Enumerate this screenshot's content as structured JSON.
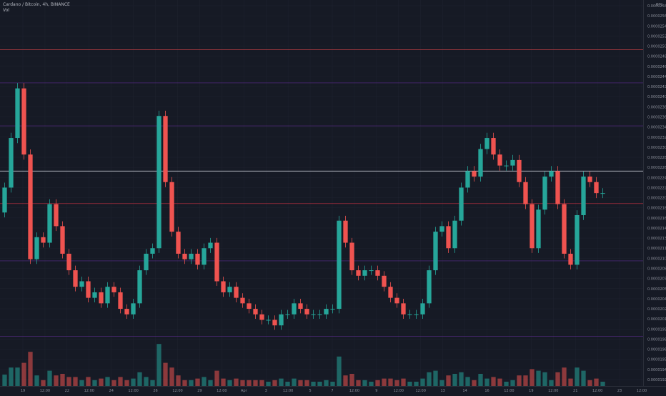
{
  "header": {
    "title": "Cardano / Bitcoin, 4h, BINANCE",
    "volume_label": "Vol"
  },
  "currency_label": "BTC",
  "colors": {
    "background": "#161a25",
    "up": "#26a69a",
    "down": "#ef5350",
    "grid": "#1f2330",
    "axis_text": "#8a8e99",
    "resistance": "#d9434a",
    "level_purple": "#5a2d8c",
    "price_line": "#c8ccd6",
    "current_line": "#cc3344"
  },
  "chart_data": {
    "type": "candlestick",
    "symbol": "ADA/BTC",
    "timeframe": "4h",
    "exchange": "BINANCE",
    "y_axis_ticks": [
      "0.00002580",
      "0.00002560",
      "0.00002540",
      "0.00002520",
      "0.00002500",
      "0.00002480",
      "0.00002460",
      "0.00002440",
      "0.00002420",
      "0.00002400",
      "0.00002380",
      "0.00002360",
      "0.00002340",
      "0.00002320",
      "0.00002300",
      "0.00002280",
      "0.00002260",
      "0.00002240",
      "0.00002220",
      "0.00002200",
      "0.00002180",
      "0.00002160",
      "0.00002145",
      "0.00002130",
      "0.00002115",
      "0.00002100",
      "0.00002085",
      "0.00002070",
      "0.00002055",
      "0.00002040",
      "0.00002025",
      "0.00002010",
      "0.00001996",
      "0.00001982",
      "0.00001968",
      "0.00001954",
      "0.00001940",
      "0.00001926"
    ],
    "x_axis_labels": [
      "19",
      "12:00",
      "22",
      "12:00",
      "24",
      "12:00",
      "26",
      "12:00",
      "29",
      "12:00",
      "Apr",
      "3",
      "12:00",
      "5",
      "7",
      "12:00",
      "9",
      "12:00",
      "12:00",
      "13",
      "14",
      "16",
      "12:00",
      "19",
      "12:00",
      "21",
      "12:00",
      "23",
      "12:00"
    ],
    "y_range": [
      1.9e-05,
      2.59e-05
    ],
    "horizontal_levels": [
      {
        "label": "0.00002510",
        "value": 2.51e-05,
        "style": "resistance"
      },
      {
        "label": "0.00002450",
        "value": 2.45e-05,
        "style": "purple"
      },
      {
        "label": "0.00002372",
        "value": 2.372e-05,
        "style": "purple"
      },
      {
        "label": "0.00002290",
        "value": 2.29e-05,
        "style": "price"
      },
      {
        "label": "0.00002231",
        "value": 2.231e-05,
        "style": "current"
      },
      {
        "label": "0.00002127",
        "value": 2.127e-05,
        "style": "purple"
      },
      {
        "label": "0.00001990",
        "value": 1.99e-05,
        "style": "purple"
      }
    ],
    "close_series": [
      2.26e-05,
      2.35e-05,
      2.44e-05,
      2.32e-05,
      2.13e-05,
      2.17e-05,
      2.16e-05,
      2.23e-05,
      2.19e-05,
      2.14e-05,
      2.11e-05,
      2.08e-05,
      2.09e-05,
      2.06e-05,
      2.07e-05,
      2.05e-05,
      2.08e-05,
      2.07e-05,
      2.04e-05,
      2.03e-05,
      2.05e-05,
      2.11e-05,
      2.14e-05,
      2.15e-05,
      2.39e-05,
      2.27e-05,
      2.18e-05,
      2.14e-05,
      2.13e-05,
      2.14e-05,
      2.12e-05,
      2.15e-05,
      2.16e-05,
      2.09e-05,
      2.07e-05,
      2.08e-05,
      2.06e-05,
      2.05e-05,
      2.04e-05,
      2.03e-05,
      2.02e-05,
      2.02e-05,
      2.01e-05,
      2.03e-05,
      2.03e-05,
      2.05e-05,
      2.04e-05,
      2.03e-05,
      2.03e-05,
      2.03e-05,
      2.04e-05,
      2.04e-05,
      2.2e-05,
      2.16e-05,
      2.11e-05,
      2.1e-05,
      2.11e-05,
      2.11e-05,
      2.1e-05,
      2.08e-05,
      2.06e-05,
      2.05e-05,
      2.03e-05,
      2.03e-05,
      2.03e-05,
      2.05e-05,
      2.11e-05,
      2.18e-05,
      2.19e-05,
      2.15e-05,
      2.2e-05,
      2.26e-05,
      2.29e-05,
      2.28e-05,
      2.33e-05,
      2.35e-05,
      2.32e-05,
      2.3e-05,
      2.3e-05,
      2.31e-05,
      2.27e-05,
      2.23e-05,
      2.15e-05,
      2.22e-05,
      2.28e-05,
      2.29e-05,
      2.23e-05,
      2.14e-05,
      2.12e-05,
      2.21e-05,
      2.28e-05,
      2.27e-05,
      2.25e-05,
      2.25e-05
    ]
  }
}
